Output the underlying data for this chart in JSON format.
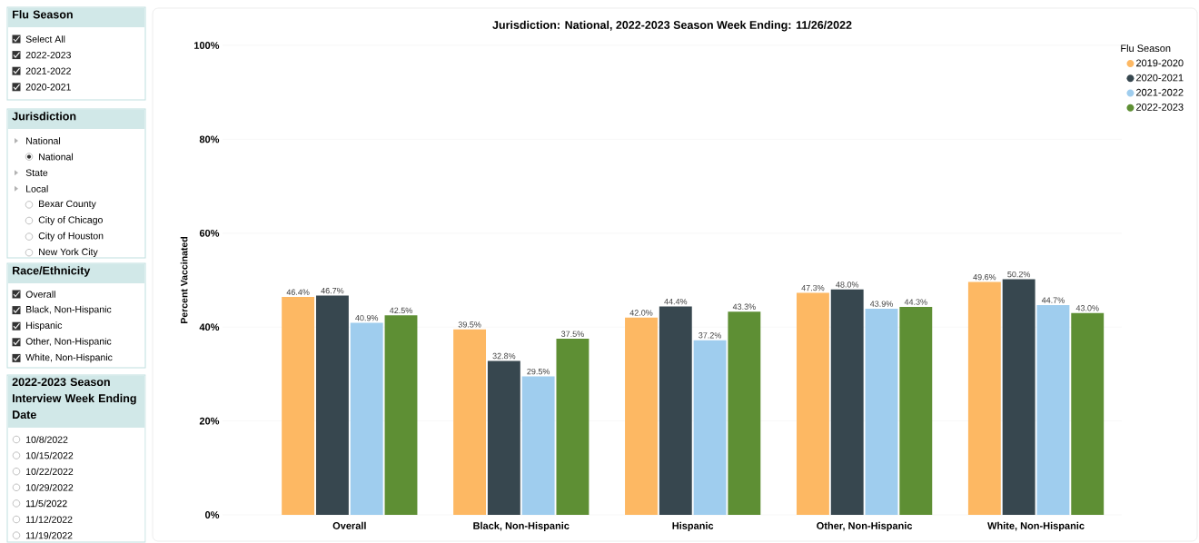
{
  "chart_data": [
    {
      "type": "other",
      "title": "Flu Season",
      "annotations": [
        "Select All",
        "2022-2023",
        "2021-2022",
        "2020-2021"
      ]
    },
    {
      "type": "other",
      "title": "Jurisdiction",
      "annotations": [
        "National",
        "National",
        "State",
        "Local",
        "Bexar County",
        "City of Chicago",
        "City of Houston",
        "New York City"
      ]
    },
    {
      "type": "other",
      "title": "Race/Ethnicity",
      "annotations": [
        "Overall",
        "Black, Non-Hispanic",
        "Hispanic",
        "Other, Non-Hispanic",
        "White, Non-Hispanic"
      ]
    },
    {
      "type": "other",
      "title": "2022-2023 Season Interview Week Ending Date",
      "annotations": [
        "10/8/2022",
        "10/15/2022",
        "10/22/2022",
        "10/29/2022",
        "11/5/2022",
        "11/12/2022",
        "11/19/2022"
      ]
    },
    {
      "type": "bar",
      "title": "Jurisdiction: National, 2022-2023 Season Week Ending: 11/26/2022",
      "ylabel": "Percent Vaccinated",
      "legend_title": "Flu Season",
      "legend": "top right",
      "grid": "y",
      "categories": [
        "Overall",
        "Black, Non-Hispanic",
        "Hispanic",
        "Other, Non-Hispanic",
        "White, Non-Hispanic"
      ],
      "ylim": [
        0,
        100
      ],
      "yticks": [
        {
          "value": 0,
          "label": "0%"
        },
        {
          "value": 20,
          "label": "20%"
        },
        {
          "value": 40,
          "label": "40%"
        },
        {
          "value": 60,
          "label": "60%"
        },
        {
          "value": 80,
          "label": "80%"
        },
        {
          "value": 100,
          "label": "100%"
        }
      ],
      "series": [
        {
          "name": "2019-2020",
          "color": "#fdb863",
          "values": [
            46.4,
            39.5,
            42.0,
            47.3,
            49.6
          ],
          "value_labels": [
            "46.4%",
            "39.5%",
            "42.0%",
            "47.3%",
            "49.6%"
          ]
        },
        {
          "name": "2020-2021",
          "color": "#37474f",
          "values": [
            46.7,
            32.8,
            44.4,
            48.0,
            50.2
          ],
          "value_labels": [
            "46.7%",
            "32.8%",
            "44.4%",
            "48.0%",
            "50.2%"
          ]
        },
        {
          "name": "2021-2022",
          "color": "#9fcdee",
          "values": [
            40.9,
            29.5,
            37.2,
            43.9,
            44.7
          ],
          "value_labels": [
            "40.9%",
            "29.5%",
            "37.2%",
            "43.9%",
            "44.7%"
          ]
        },
        {
          "name": "2022-2023",
          "color": "#5e8f34",
          "values": [
            42.5,
            37.5,
            43.3,
            44.3,
            43.0
          ],
          "value_labels": [
            "42.5%",
            "37.5%",
            "43.3%",
            "44.3%",
            "43.0%"
          ]
        }
      ]
    }
  ]
}
